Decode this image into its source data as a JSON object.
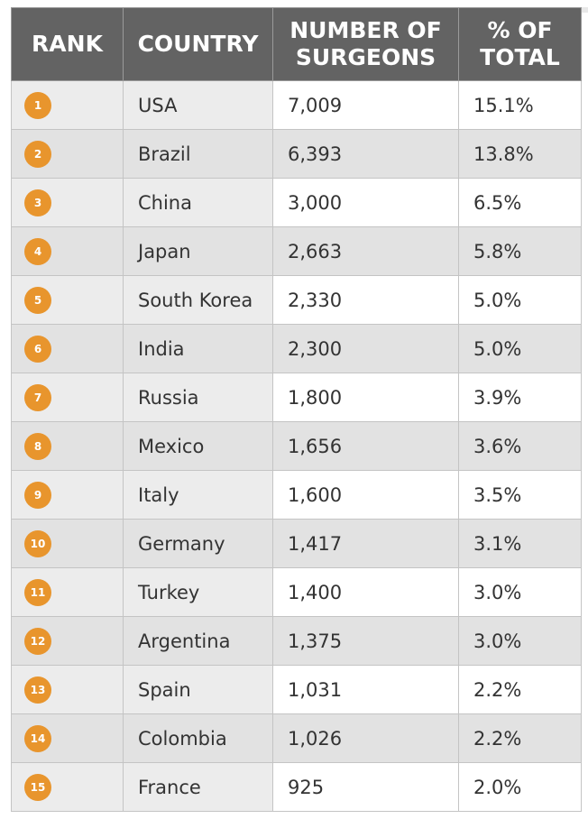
{
  "chart_data": {
    "type": "table",
    "title": "",
    "columns": [
      "RANK",
      "COUNTRY",
      "NUMBER OF SURGEONS",
      "% OF TOTAL"
    ],
    "rows": [
      {
        "rank": "1",
        "country": "USA",
        "surgeons": "7,009",
        "percent": "15.1%"
      },
      {
        "rank": "2",
        "country": "Brazil",
        "surgeons": "6,393",
        "percent": "13.8%"
      },
      {
        "rank": "3",
        "country": "China",
        "surgeons": "3,000",
        "percent": "6.5%"
      },
      {
        "rank": "4",
        "country": "Japan",
        "surgeons": "2,663",
        "percent": "5.8%"
      },
      {
        "rank": "5",
        "country": "South Korea",
        "surgeons": "2,330",
        "percent": "5.0%"
      },
      {
        "rank": "6",
        "country": "India",
        "surgeons": "2,300",
        "percent": "5.0%"
      },
      {
        "rank": "7",
        "country": "Russia",
        "surgeons": "1,800",
        "percent": "3.9%"
      },
      {
        "rank": "8",
        "country": "Mexico",
        "surgeons": "1,656",
        "percent": "3.6%"
      },
      {
        "rank": "9",
        "country": "Italy",
        "surgeons": "1,600",
        "percent": "3.5%"
      },
      {
        "rank": "10",
        "country": "Germany",
        "surgeons": "1,417",
        "percent": "3.1%"
      },
      {
        "rank": "11",
        "country": "Turkey",
        "surgeons": "1,400",
        "percent": "3.0%"
      },
      {
        "rank": "12",
        "country": "Argentina",
        "surgeons": "1,375",
        "percent": "3.0%"
      },
      {
        "rank": "13",
        "country": "Spain",
        "surgeons": "1,031",
        "percent": "2.2%"
      },
      {
        "rank": "14",
        "country": "Colombia",
        "surgeons": "1,026",
        "percent": "2.2%"
      },
      {
        "rank": "15",
        "country": "France",
        "surgeons": "925",
        "percent": "2.0%"
      }
    ],
    "colors": {
      "header": "#636363",
      "badge": "#e8952d",
      "row_shade": "#e2e2e2"
    }
  }
}
